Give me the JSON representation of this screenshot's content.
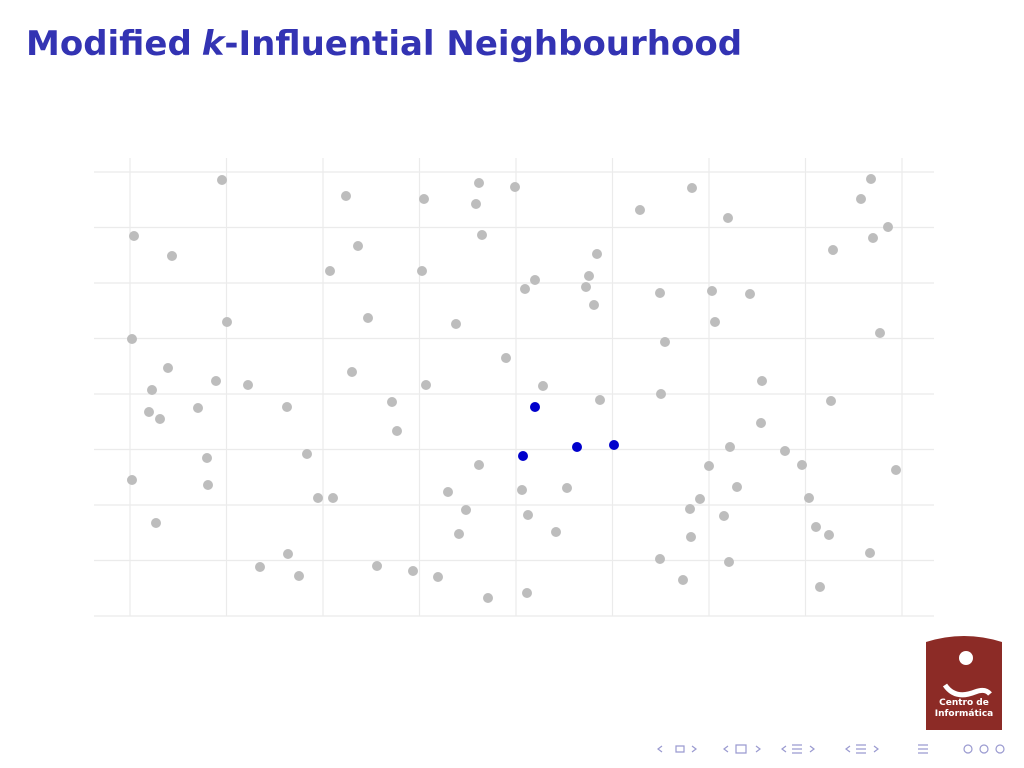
{
  "chart_data": {
    "type": "scatter",
    "title": {
      "before": "Modified",
      "var": "k",
      "after": "-Influential Neighbourhood"
    },
    "xlim": [
      -36,
      804
    ],
    "ylim": [
      0,
      458
    ],
    "xticks": [
      0,
      96.5,
      193,
      289.5,
      386,
      482.5,
      579,
      675.5,
      772
    ],
    "yticks": [
      0,
      55.5,
      111,
      166.5,
      222,
      277.5,
      333,
      388.5,
      444
    ],
    "grid": true,
    "series": [
      {
        "color": "#bdbdbd",
        "x": [
          92,
          216,
          294,
          349,
          346,
          385,
          562,
          510,
          598,
          741,
          731,
          758,
          743,
          703,
          4,
          42,
          228,
          352,
          200,
          292,
          467,
          459,
          456,
          405,
          395,
          530,
          582,
          620,
          464,
          238,
          326,
          97,
          585,
          750,
          2,
          535,
          376,
          38,
          222,
          22,
          86,
          118,
          296,
          413,
          531,
          632,
          19,
          30,
          68,
          157,
          262,
          470,
          701,
          267,
          631,
          77,
          177,
          600,
          655,
          349,
          579,
          672,
          766,
          2,
          78,
          188,
          203,
          318,
          392,
          437,
          607,
          570,
          679,
          26,
          336,
          398,
          560,
          594,
          686,
          329,
          426,
          561,
          699,
          158,
          130,
          169,
          247,
          283,
          308,
          530,
          599,
          740,
          358,
          397,
          553,
          690
        ],
        "y": [
          436,
          420,
          417,
          433,
          412,
          429,
          428,
          406,
          398,
          437,
          417,
          389,
          378,
          366,
          380,
          360,
          370,
          381,
          345,
          345,
          362,
          340,
          329,
          336,
          327,
          323,
          325,
          322,
          311,
          298,
          292,
          294,
          294,
          283,
          277,
          274,
          258,
          248,
          244,
          226,
          235,
          231,
          231,
          230,
          222,
          235,
          204,
          197,
          208,
          209,
          214,
          216,
          215,
          185,
          193,
          158,
          162,
          169,
          165,
          151,
          150,
          151,
          146,
          136,
          131,
          118,
          118,
          124,
          126,
          128,
          129,
          117,
          118,
          93,
          106,
          101,
          107,
          100,
          89,
          82,
          84,
          79,
          81,
          62,
          49,
          40,
          50,
          45,
          39,
          57,
          54,
          63,
          18,
          23,
          36,
          29
        ]
      },
      {
        "color": "#0000cc",
        "x": [
          405,
          393,
          447,
          484
        ],
        "y": [
          209,
          160,
          169,
          171
        ]
      }
    ]
  },
  "logo": {
    "line1": "Centro de",
    "line2": "Informática"
  }
}
